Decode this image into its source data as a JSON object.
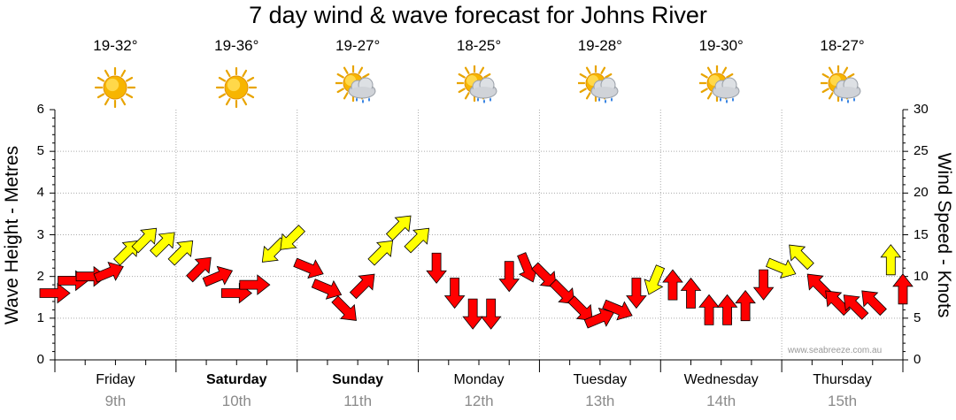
{
  "chart_data": {
    "type": "line",
    "title": "7 day wind & wave forecast for Johns River",
    "ylabel_left": "Wave Height - Metres",
    "ylabel_right": "Wind Speed - Knots",
    "ylim_left": [
      0,
      6
    ],
    "ylim_right": [
      0,
      30
    ],
    "yticks_left": [
      "0",
      "1",
      "2",
      "3",
      "4",
      "5",
      "6"
    ],
    "yticks_right": [
      "0",
      "5",
      "10",
      "15",
      "20",
      "25",
      "30"
    ],
    "grid": true,
    "days": [
      {
        "name": "Friday",
        "date": "9th",
        "temp": "19-32°",
        "weather": "sunny",
        "bold": false
      },
      {
        "name": "Saturday",
        "date": "10th",
        "temp": "19-36°",
        "weather": "sunny",
        "bold": true
      },
      {
        "name": "Sunday",
        "date": "11th",
        "temp": "19-27°",
        "weather": "sun-cloud-rain",
        "bold": true
      },
      {
        "name": "Monday",
        "date": "12th",
        "temp": "18-25°",
        "weather": "sun-cloud-rain",
        "bold": false
      },
      {
        "name": "Tuesday",
        "date": "13th",
        "temp": "19-28°",
        "weather": "sun-cloud-rain",
        "bold": false
      },
      {
        "name": "Wednesday",
        "date": "14th",
        "temp": "19-30°",
        "weather": "sun-cloud-rain",
        "bold": false
      },
      {
        "name": "Thursday",
        "date": "15th",
        "temp": "18-27°",
        "weather": "sun-cloud-rain",
        "bold": false
      }
    ],
    "series": [
      {
        "axis": "right",
        "x": [
          0,
          0.15,
          0.3,
          0.45,
          0.6,
          0.75,
          0.9,
          1.05,
          1.2,
          1.35,
          1.5,
          1.65,
          1.8,
          1.95,
          2.1,
          2.25,
          2.4,
          2.55,
          2.7,
          2.85,
          3.0,
          3.15,
          3.3,
          3.45,
          3.6,
          3.75,
          3.9,
          4.05,
          4.2,
          4.35,
          4.5,
          4.65,
          4.8,
          4.95,
          5.1,
          5.25,
          5.4,
          5.55,
          5.7,
          5.85,
          6.0,
          6.15,
          6.3,
          6.45,
          6.6,
          6.75,
          6.9,
          7.0
        ],
        "values": [
          8,
          9.5,
          10,
          10.5,
          13,
          14.5,
          14,
          13,
          11,
          10,
          8,
          9,
          13,
          14.5,
          11,
          8.5,
          6,
          9,
          13,
          16,
          14.5,
          11,
          8,
          5.5,
          5.5,
          10,
          11,
          10,
          8,
          6,
          5,
          6,
          8,
          9.5,
          9,
          8,
          6,
          6,
          6.5,
          9,
          11,
          12.5,
          9,
          7,
          6.5,
          7,
          12,
          8.5
        ],
        "compass": [
          "W",
          "W",
          "W",
          "WSW",
          "SW",
          "SW",
          "SW",
          "SW",
          "SW",
          "WSW",
          "W",
          "W",
          "NE",
          "NE",
          "WNW",
          "WNW",
          "NW",
          "SW",
          "SW",
          "SW",
          "SW",
          "N",
          "N",
          "N",
          "N",
          "N",
          "NNW",
          "NW",
          "NW",
          "NW",
          "WSW",
          "WNW",
          "N",
          "NNE",
          "S",
          "S",
          "S",
          "S",
          "S",
          "N",
          "WNW",
          "SE",
          "SE",
          "SE",
          "SE",
          "SE",
          "S",
          "S"
        ],
        "speed_band": [
          "mid",
          "mid",
          "mid",
          "mid",
          "high",
          "high",
          "high",
          "high",
          "mid",
          "mid",
          "mid",
          "mid",
          "high",
          "high",
          "mid",
          "mid",
          "mid",
          "mid",
          "high",
          "high",
          "high",
          "mid",
          "mid",
          "mid",
          "mid",
          "mid",
          "mid",
          "mid",
          "mid",
          "mid",
          "mid",
          "mid",
          "mid",
          "high",
          "mid",
          "mid",
          "mid",
          "mid",
          "mid",
          "mid",
          "high",
          "high",
          "mid",
          "mid",
          "mid",
          "mid",
          "high",
          "mid"
        ]
      }
    ]
  },
  "credit": "www.seabreeze.com.au",
  "colors": {
    "low": "#ff0000",
    "high": "#ffff00",
    "outline": "#000000",
    "grid": "#aaaaaa",
    "date": "#8a8a8a"
  }
}
